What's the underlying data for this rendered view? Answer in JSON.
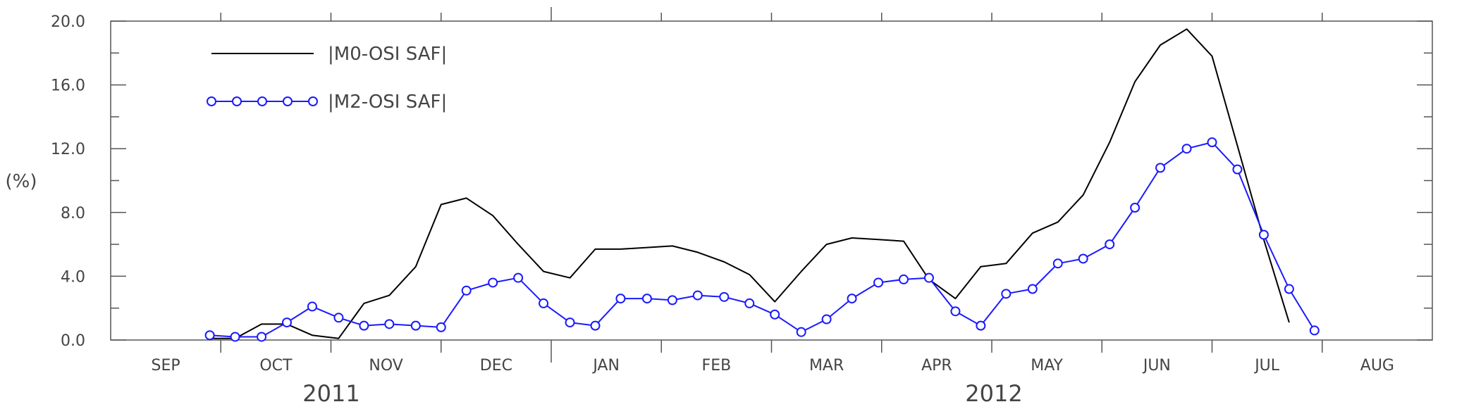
{
  "chart_data": {
    "type": "line",
    "ylabel": "(%)",
    "ylim": [
      0,
      20
    ],
    "xlim": [
      0,
      12
    ],
    "y_ticks": [
      "0.0",
      "4.0",
      "8.0",
      "12.0",
      "16.0",
      "20.0"
    ],
    "months": [
      "SEP",
      "OCT",
      "NOV",
      "DEC",
      "JAN",
      "FEB",
      "MAR",
      "APR",
      "MAY",
      "JUN",
      "JUL",
      "AUG"
    ],
    "years": [
      "2011",
      "2012"
    ],
    "legend_position": "top-left",
    "series": [
      {
        "name": "|M0-OSI SAF|",
        "color": "#000000",
        "marker": "none",
        "x": [
          0.9,
          1.13,
          1.37,
          1.6,
          1.83,
          2.07,
          2.3,
          2.53,
          2.77,
          3.0,
          3.23,
          3.47,
          3.7,
          3.93,
          4.17,
          4.4,
          4.63,
          4.87,
          5.1,
          5.33,
          5.57,
          5.8,
          6.03,
          6.27,
          6.5,
          6.73,
          6.97,
          7.2,
          7.43,
          7.67,
          7.9,
          8.13,
          8.37,
          8.6,
          8.83,
          9.07,
          9.3,
          9.53,
          9.77,
          10.0,
          10.23,
          10.47,
          10.7
        ],
        "y": [
          0.1,
          0.1,
          1.0,
          1.0,
          0.3,
          0.1,
          2.3,
          2.8,
          4.6,
          8.5,
          8.9,
          7.8,
          6.0,
          4.3,
          3.9,
          5.7,
          5.7,
          5.8,
          5.9,
          5.5,
          4.9,
          4.1,
          2.4,
          4.3,
          6.0,
          6.4,
          6.3,
          6.2,
          3.8,
          2.6,
          4.6,
          4.8,
          6.7,
          7.4,
          9.1,
          12.4,
          16.2,
          18.5,
          19.5,
          17.8,
          12.2,
          6.3,
          1.1
        ]
      },
      {
        "name": "|M2-OSI SAF|",
        "color": "#1a1aff",
        "marker": "open-circle",
        "x": [
          0.9,
          1.13,
          1.37,
          1.6,
          1.83,
          2.07,
          2.3,
          2.53,
          2.77,
          3.0,
          3.23,
          3.47,
          3.7,
          3.93,
          4.17,
          4.4,
          4.63,
          4.87,
          5.1,
          5.33,
          5.57,
          5.8,
          6.03,
          6.27,
          6.5,
          6.73,
          6.97,
          7.2,
          7.43,
          7.67,
          7.9,
          8.13,
          8.37,
          8.6,
          8.83,
          9.07,
          9.3,
          9.53,
          9.77,
          10.0,
          10.23,
          10.47,
          10.7,
          10.93
        ],
        "y": [
          0.3,
          0.2,
          0.2,
          1.1,
          2.1,
          1.4,
          0.9,
          1.0,
          0.9,
          0.8,
          3.1,
          3.6,
          3.9,
          2.3,
          1.1,
          0.9,
          2.6,
          2.6,
          2.5,
          2.8,
          2.7,
          2.3,
          1.6,
          0.5,
          1.3,
          2.6,
          3.6,
          3.8,
          3.9,
          1.8,
          0.9,
          2.9,
          3.2,
          4.8,
          5.1,
          6.0,
          8.3,
          10.8,
          12.0,
          12.4,
          10.7,
          6.6,
          3.2,
          0.6
        ]
      }
    ]
  }
}
